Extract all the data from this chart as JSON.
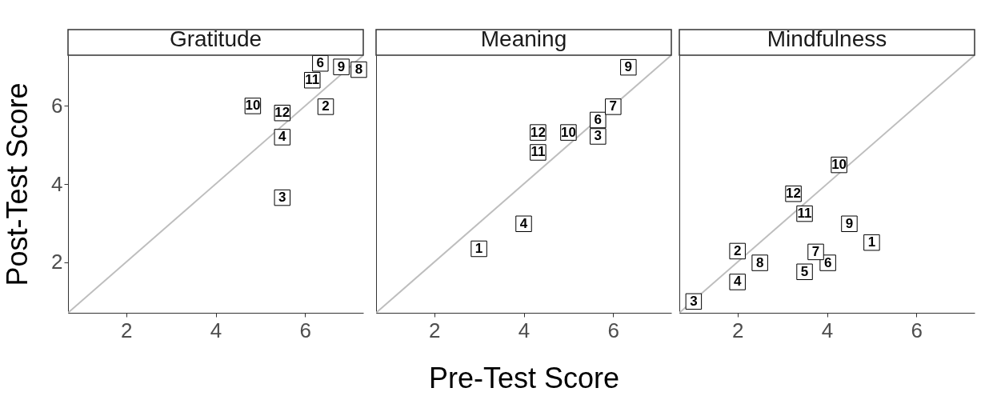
{
  "chart_data": [
    {
      "type": "scatter",
      "title": "Gratitude",
      "ylabel": "Post-Test Score",
      "xlim": [
        0.7,
        7.3
      ],
      "ylim": [
        0.7,
        7.3
      ],
      "xticks": [
        2,
        4,
        6
      ],
      "yticks": [
        2,
        4,
        6
      ],
      "series": [
        {
          "type": "line",
          "x": [
            0.7,
            7.3
          ],
          "values": [
            0.7,
            7.3
          ],
          "color": "#bebebe"
        },
        {
          "marker": "square",
          "x": [
            6.46,
            5.49,
            5.49,
            6.34,
            7.2,
            6.81,
            4.83,
            6.16,
            5.49
          ],
          "values": [
            5.98,
            3.65,
            5.2,
            7.09,
            6.93,
            7.0,
            6.0,
            6.66,
            5.82
          ],
          "color": "#000000"
        }
      ],
      "annotations": [
        {
          "text": "2",
          "x": 6.46,
          "y": 5.98
        },
        {
          "text": "3",
          "x": 5.49,
          "y": 3.65
        },
        {
          "text": "4",
          "x": 5.49,
          "y": 5.2
        },
        {
          "text": "6",
          "x": 6.34,
          "y": 7.09
        },
        {
          "text": "8",
          "x": 7.2,
          "y": 6.93
        },
        {
          "text": "9",
          "x": 6.81,
          "y": 7.0
        },
        {
          "text": "10",
          "x": 4.83,
          "y": 6.0
        },
        {
          "text": "11",
          "x": 6.16,
          "y": 6.66
        },
        {
          "text": "12",
          "x": 5.49,
          "y": 5.82
        }
      ]
    },
    {
      "type": "scatter",
      "title": "Meaning",
      "xlabel": "Pre-Test Score",
      "xlim": [
        0.7,
        7.3
      ],
      "ylim": [
        0.7,
        7.3
      ],
      "xticks": [
        2,
        4,
        6
      ],
      "yticks": [
        2,
        4,
        6
      ],
      "tick_labels": "x",
      "series": [
        {
          "type": "line",
          "x": [
            0.7,
            7.3
          ],
          "values": [
            0.7,
            7.3
          ],
          "color": "#bebebe"
        },
        {
          "marker": "square",
          "x": [
            3.0,
            5.66,
            4.0,
            5.66,
            6.0,
            6.34,
            5.0,
            4.32,
            4.32
          ],
          "values": [
            2.34,
            5.22,
            2.98,
            5.64,
            5.98,
            6.99,
            5.32,
            4.81,
            5.32
          ],
          "color": "#000000"
        }
      ],
      "annotations": [
        {
          "text": "1",
          "x": 3.0,
          "y": 2.34
        },
        {
          "text": "3",
          "x": 5.66,
          "y": 5.22
        },
        {
          "text": "4",
          "x": 4.0,
          "y": 2.98
        },
        {
          "text": "6",
          "x": 5.66,
          "y": 5.64
        },
        {
          "text": "7",
          "x": 6.0,
          "y": 5.98
        },
        {
          "text": "9",
          "x": 6.34,
          "y": 6.99
        },
        {
          "text": "10",
          "x": 5.0,
          "y": 5.32
        },
        {
          "text": "11",
          "x": 4.32,
          "y": 4.81
        },
        {
          "text": "12",
          "x": 4.32,
          "y": 5.32
        }
      ]
    },
    {
      "type": "scatter",
      "title": "Mindfulness",
      "xlim": [
        0.7,
        7.3
      ],
      "ylim": [
        0.7,
        7.3
      ],
      "xticks": [
        2,
        4,
        6
      ],
      "yticks": [
        2,
        4,
        6
      ],
      "tick_labels": "x",
      "series": [
        {
          "type": "line",
          "x": [
            0.7,
            7.3
          ],
          "values": [
            0.7,
            7.3
          ],
          "color": "#bebebe"
        },
        {
          "marker": "square",
          "x": [
            5.0,
            2.0,
            1.02,
            2.0,
            3.5,
            4.02,
            3.75,
            2.5,
            4.5,
            4.27,
            3.5,
            3.25
          ],
          "values": [
            2.5,
            2.28,
            0.99,
            1.49,
            1.75,
            1.98,
            2.26,
            1.98,
            2.98,
            4.49,
            3.24,
            3.75
          ],
          "color": "#000000"
        }
      ],
      "annotations": [
        {
          "text": "1",
          "x": 5.0,
          "y": 2.5
        },
        {
          "text": "2",
          "x": 2.0,
          "y": 2.28
        },
        {
          "text": "3",
          "x": 1.02,
          "y": 0.99
        },
        {
          "text": "4",
          "x": 2.0,
          "y": 1.49
        },
        {
          "text": "5",
          "x": 3.5,
          "y": 1.75
        },
        {
          "text": "6",
          "x": 4.02,
          "y": 1.98
        },
        {
          "text": "7",
          "x": 3.75,
          "y": 2.26
        },
        {
          "text": "8",
          "x": 2.5,
          "y": 1.98
        },
        {
          "text": "9",
          "x": 4.5,
          "y": 2.98
        },
        {
          "text": "10",
          "x": 4.27,
          "y": 4.49
        },
        {
          "text": "11",
          "x": 3.5,
          "y": 3.24
        },
        {
          "text": "12",
          "x": 3.25,
          "y": 3.75
        }
      ]
    }
  ]
}
